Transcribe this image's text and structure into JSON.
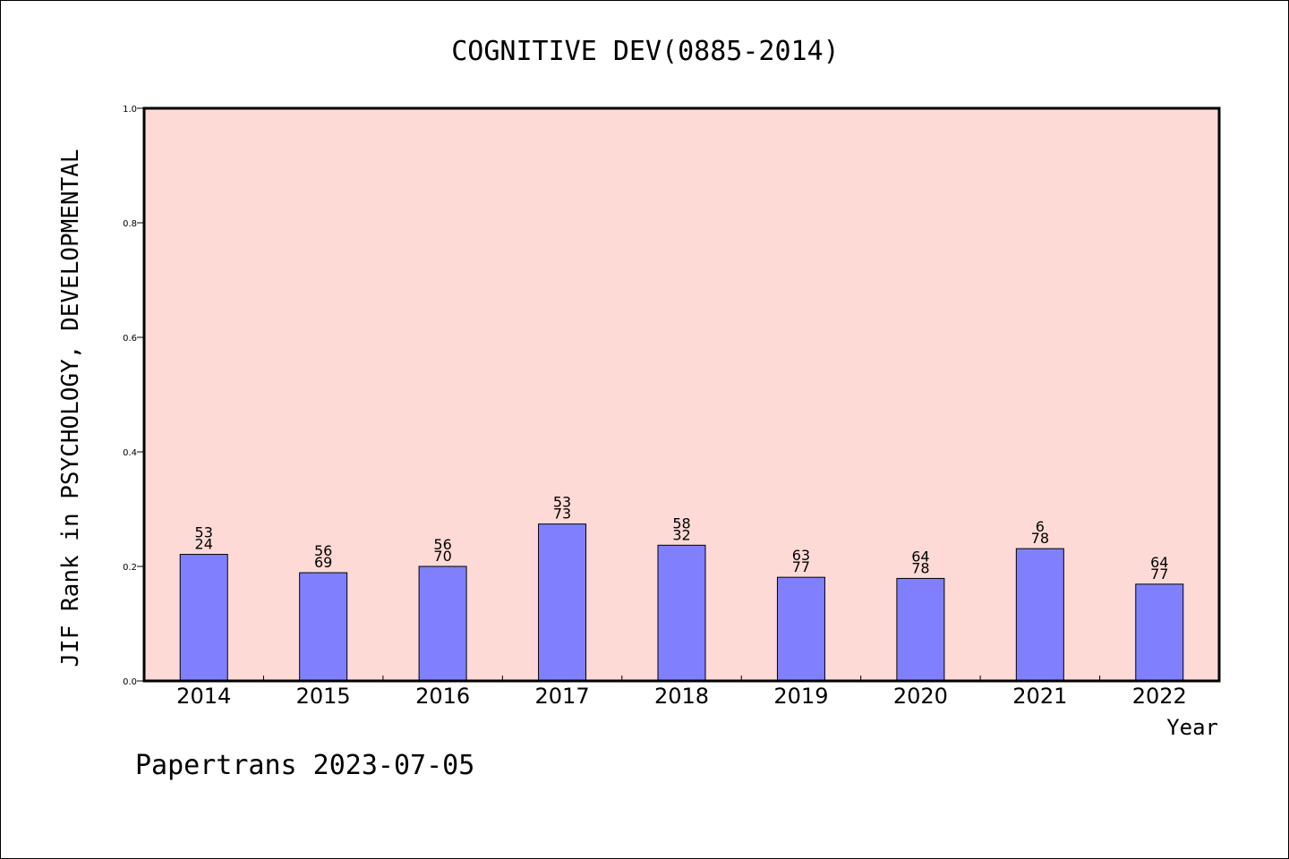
{
  "footer": "Papertrans 2023-07-05",
  "colors": {
    "plot_bg": "#fddad6",
    "bar_fill": "#8080ff",
    "bar_stroke": "#000000",
    "frame": "#000000"
  },
  "chart_data": {
    "type": "bar",
    "title": "COGNITIVE DEV(0885-2014)",
    "xlabel": "Year",
    "ylabel": "JIF Rank in PSYCHOLOGY, DEVELOPMENTAL",
    "ylim": [
      0,
      1.0
    ],
    "yticks": [
      "0.0",
      "0.2",
      "0.4",
      "0.6",
      "0.8",
      "1.0"
    ],
    "grid": false,
    "categories": [
      "2014",
      "2015",
      "2016",
      "2017",
      "2018",
      "2019",
      "2020",
      "2021",
      "2022"
    ],
    "values": [
      0.221,
      0.189,
      0.2,
      0.274,
      0.237,
      0.181,
      0.179,
      0.231,
      0.169
    ],
    "labels": [
      [
        "53",
        "24"
      ],
      [
        "56",
        "69"
      ],
      [
        "56",
        "70"
      ],
      [
        "53",
        "73"
      ],
      [
        "58",
        "32"
      ],
      [
        "63",
        "77"
      ],
      [
        "64",
        "78"
      ],
      [
        "6",
        "78"
      ],
      [
        "64",
        "77"
      ]
    ]
  }
}
